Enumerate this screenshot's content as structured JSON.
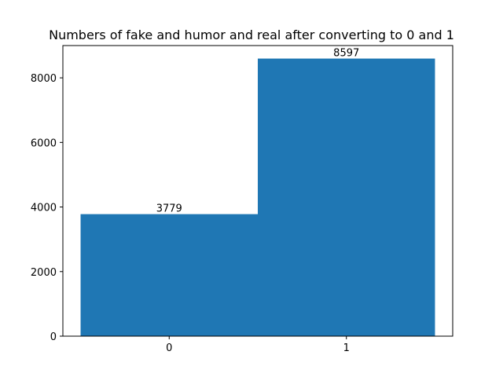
{
  "chart_data": {
    "type": "bar",
    "title": "Numbers of fake and humor and real after converting to 0 and 1",
    "xlabel": "",
    "ylabel": "",
    "categories": [
      "0",
      "1"
    ],
    "values": [
      3779,
      8597
    ],
    "data_labels": [
      "3779",
      "8597"
    ],
    "bar_color": "#1f77b4",
    "ylim": [
      0,
      9000
    ],
    "yticks": [
      0,
      2000,
      4000,
      6000,
      8000
    ],
    "ytick_labels": [
      "0",
      "2000",
      "4000",
      "6000",
      "8000"
    ],
    "grid": false,
    "legend": "none"
  }
}
